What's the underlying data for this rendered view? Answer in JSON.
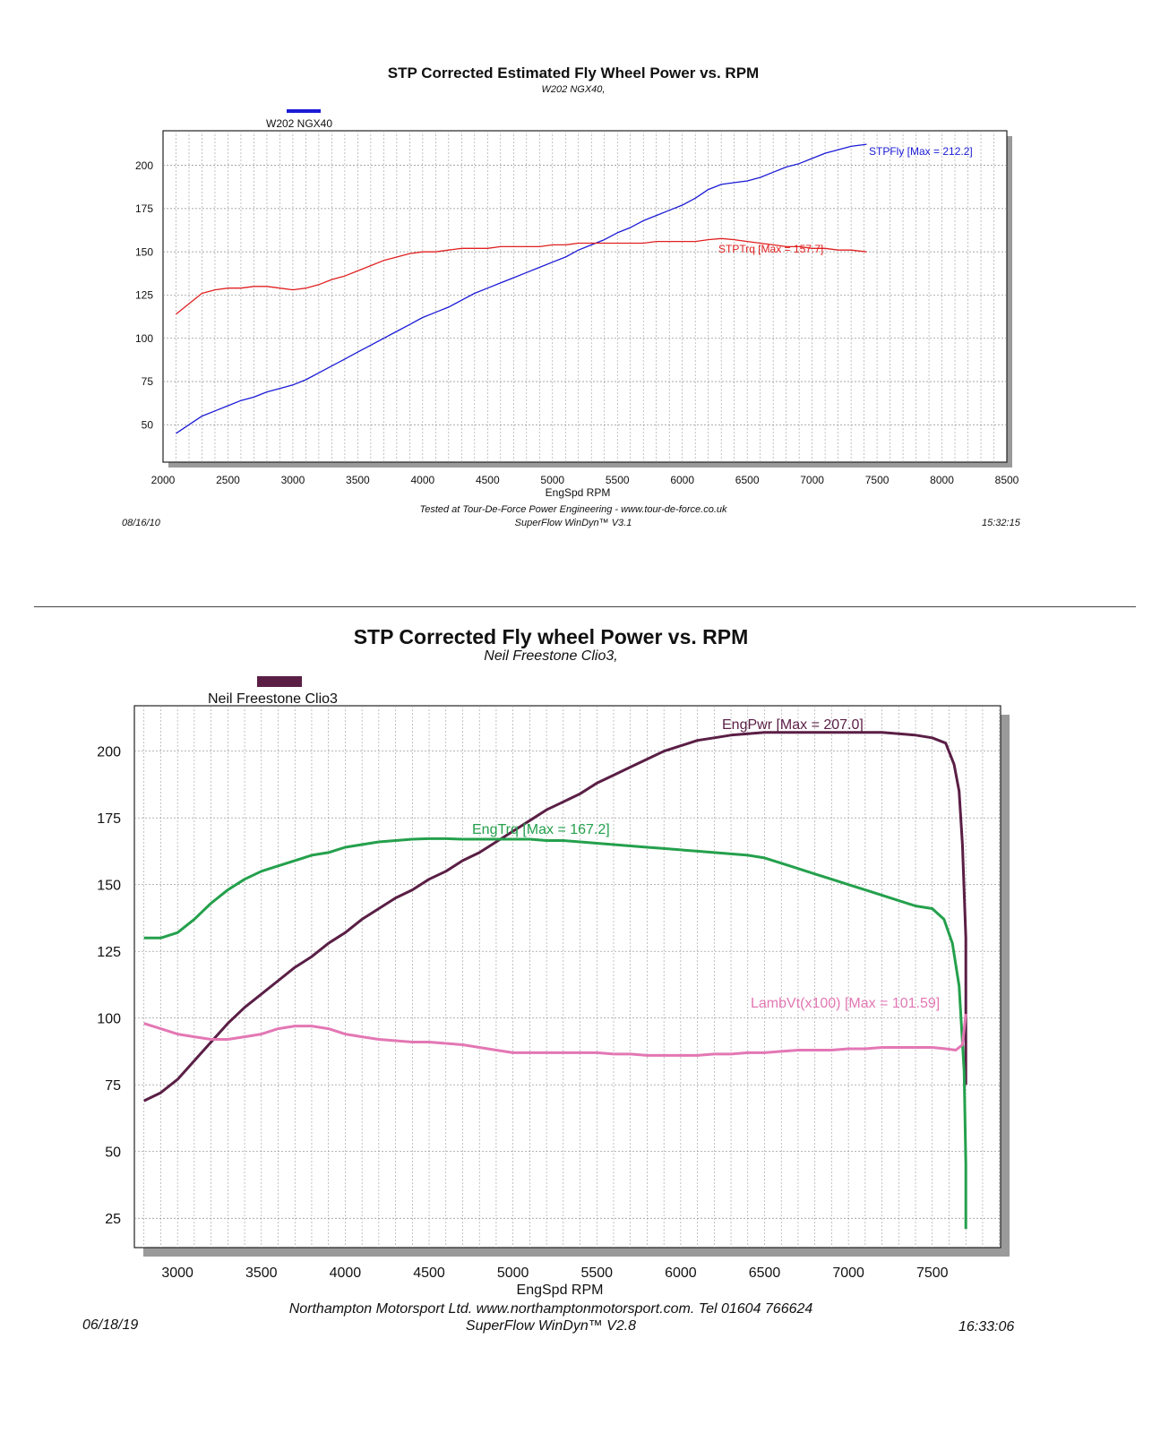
{
  "chart_data": [
    {
      "type": "line",
      "title": "STP Corrected Estimated Fly Wheel Power vs. RPM",
      "subtitle": "W202 NGX40,",
      "legend": {
        "name": "W202 NGX40",
        "color": "#1a1ad6",
        "placement": "top-left"
      },
      "xlabel": "EngSpd RPM",
      "ylabel": "",
      "xlim": [
        2000,
        8500
      ],
      "ylim": [
        32,
        220
      ],
      "xticks": [
        2000,
        2500,
        3000,
        3500,
        4000,
        4500,
        5000,
        5500,
        6000,
        6500,
        7000,
        7500,
        8000,
        8500
      ],
      "yticks": [
        50,
        75,
        100,
        125,
        150,
        175,
        200
      ],
      "grid": true,
      "series": [
        {
          "name": "STPFly",
          "label": "STPFly [Max = 212.2]",
          "color": "#1a1ad6",
          "x": [
            2100,
            2200,
            2300,
            2400,
            2500,
            2600,
            2700,
            2800,
            2900,
            3000,
            3100,
            3200,
            3300,
            3400,
            3500,
            3600,
            3700,
            3800,
            3900,
            4000,
            4100,
            4200,
            4300,
            4400,
            4500,
            4600,
            4700,
            4800,
            4900,
            5000,
            5100,
            5200,
            5300,
            5400,
            5500,
            5600,
            5700,
            5800,
            5900,
            6000,
            6100,
            6200,
            6300,
            6400,
            6500,
            6600,
            6700,
            6800,
            6900,
            7000,
            7100,
            7200,
            7300,
            7420
          ],
          "y": [
            45,
            50,
            55,
            58,
            61,
            64,
            66,
            69,
            71,
            73,
            76,
            80,
            84,
            88,
            92,
            96,
            100,
            104,
            108,
            112,
            115,
            118,
            122,
            126,
            129,
            132,
            135,
            138,
            141,
            144,
            147,
            151,
            154,
            157,
            161,
            164,
            168,
            171,
            174,
            177,
            181,
            186,
            189,
            190,
            191,
            193,
            196,
            199,
            201,
            204,
            207,
            209,
            211,
            212.2
          ]
        },
        {
          "name": "STPTrq",
          "label": "STPTrq [Max = 157.7]",
          "color": "#e02020",
          "x": [
            2100,
            2200,
            2300,
            2400,
            2500,
            2600,
            2700,
            2800,
            2900,
            3000,
            3100,
            3200,
            3300,
            3400,
            3500,
            3600,
            3700,
            3800,
            3900,
            4000,
            4100,
            4200,
            4300,
            4400,
            4500,
            4600,
            4700,
            4800,
            4900,
            5000,
            5100,
            5200,
            5300,
            5400,
            5500,
            5600,
            5700,
            5800,
            5900,
            6000,
            6100,
            6200,
            6300,
            6400,
            6500,
            6600,
            6700,
            6800,
            6900,
            7000,
            7100,
            7200,
            7300,
            7420
          ],
          "y": [
            114,
            120,
            126,
            128,
            129,
            129,
            130,
            130,
            129,
            128,
            129,
            131,
            134,
            136,
            139,
            142,
            145,
            147,
            149,
            150,
            150,
            151,
            152,
            152,
            152,
            153,
            153,
            153,
            153,
            154,
            154,
            155,
            155,
            155,
            155,
            155,
            155,
            156,
            156,
            156,
            156,
            157,
            157.7,
            157,
            156,
            155,
            154,
            153,
            153,
            152,
            152,
            151,
            151,
            150
          ]
        }
      ]
    },
    {
      "type": "line",
      "title": "STP Corrected Fly wheel Power vs. RPM",
      "subtitle": "Neil Freestone Clio3,",
      "legend": {
        "name": "Neil Freestone Clio3",
        "color": "#5a1e45",
        "placement": "top-left"
      },
      "xlabel": "EngSpd  RPM",
      "ylabel": "",
      "xlim": [
        2700,
        7950
      ],
      "ylim": [
        14,
        217
      ],
      "xticks": [
        3000,
        3500,
        4000,
        4500,
        5000,
        5500,
        6000,
        6500,
        7000,
        7500
      ],
      "yticks": [
        25,
        50,
        75,
        100,
        125,
        150,
        175,
        200
      ],
      "grid": true,
      "series": [
        {
          "name": "EngPwr",
          "label": "EngPwr [Max = 207.0]",
          "color": "#5a1e45",
          "x": [
            2800,
            2900,
            3000,
            3100,
            3200,
            3300,
            3400,
            3500,
            3600,
            3700,
            3800,
            3900,
            4000,
            4100,
            4200,
            4300,
            4400,
            4500,
            4600,
            4700,
            4800,
            4900,
            5000,
            5100,
            5200,
            5300,
            5400,
            5500,
            5600,
            5700,
            5800,
            5900,
            6000,
            6100,
            6200,
            6300,
            6400,
            6500,
            6600,
            6700,
            6800,
            6900,
            7000,
            7100,
            7200,
            7300,
            7400,
            7500,
            7580,
            7630,
            7660,
            7680,
            7700,
            7700
          ],
          "y": [
            69,
            72,
            77,
            84,
            91,
            98,
            104,
            109,
            114,
            119,
            123,
            128,
            132,
            137,
            141,
            145,
            148,
            152,
            155,
            159,
            162,
            166,
            170,
            174,
            178,
            181,
            184,
            188,
            191,
            194,
            197,
            200,
            202,
            204,
            205,
            206,
            206.5,
            207,
            207,
            207,
            207,
            207,
            207,
            207,
            207,
            206.5,
            206,
            205,
            203,
            195,
            185,
            165,
            130,
            75
          ]
        },
        {
          "name": "EngTrq",
          "label": "EngTrq [Max = 167.2]",
          "color": "#24a04c",
          "x": [
            2800,
            2900,
            3000,
            3100,
            3200,
            3300,
            3400,
            3500,
            3600,
            3700,
            3800,
            3900,
            4000,
            4100,
            4200,
            4300,
            4400,
            4500,
            4600,
            4700,
            4800,
            4900,
            5000,
            5100,
            5200,
            5300,
            5400,
            5500,
            5600,
            5700,
            5800,
            5900,
            6000,
            6100,
            6200,
            6300,
            6400,
            6500,
            6600,
            6700,
            6800,
            6900,
            7000,
            7100,
            7200,
            7300,
            7400,
            7500,
            7570,
            7620,
            7660,
            7690,
            7700,
            7700
          ],
          "y": [
            130,
            130,
            132,
            137,
            143,
            148,
            152,
            155,
            157,
            159,
            161,
            162,
            164,
            165,
            166,
            166.5,
            167,
            167.2,
            167.2,
            167,
            167,
            167,
            167,
            167,
            166.5,
            166.5,
            166,
            165.5,
            165,
            164.5,
            164,
            163.5,
            163,
            162.5,
            162,
            161.5,
            161,
            160,
            158,
            156,
            154,
            152,
            150,
            148,
            146,
            144,
            142,
            141,
            137,
            128,
            112,
            80,
            45,
            21
          ]
        },
        {
          "name": "LambVt(x100)",
          "label": "LambVt(x100) [Max = 101.59]",
          "color": "#e377b4",
          "x": [
            2800,
            2900,
            3000,
            3100,
            3200,
            3300,
            3400,
            3500,
            3600,
            3700,
            3800,
            3900,
            4000,
            4100,
            4200,
            4300,
            4400,
            4500,
            4600,
            4700,
            4800,
            4900,
            5000,
            5100,
            5200,
            5300,
            5400,
            5500,
            5600,
            5700,
            5800,
            5900,
            6000,
            6100,
            6200,
            6300,
            6400,
            6500,
            6600,
            6700,
            6800,
            6900,
            7000,
            7100,
            7200,
            7300,
            7400,
            7500,
            7580,
            7640,
            7680,
            7700
          ],
          "y": [
            98,
            96,
            94,
            93,
            92,
            92,
            93,
            94,
            96,
            97,
            97,
            96,
            94,
            93,
            92,
            91.5,
            91,
            91,
            90.5,
            90,
            89,
            88,
            87,
            87,
            87,
            87,
            87,
            87,
            86.5,
            86.5,
            86,
            86,
            86,
            86,
            86.5,
            86.5,
            87,
            87,
            87.5,
            88,
            88,
            88,
            88.5,
            88.5,
            89,
            89,
            89,
            89,
            88.5,
            88,
            90,
            101.59
          ]
        }
      ]
    }
  ],
  "panel1": {
    "title": "STP Corrected Estimated Fly Wheel Power vs. RPM",
    "subtitle": "W202 NGX40,",
    "footer_line1": "Tested at Tour-De-Force Power Engineering - www.tour-de-force.co.uk",
    "footer_line2": "SuperFlow WinDyn™ V3.1",
    "date": "08/16/10",
    "time": "15:32:15"
  },
  "panel2": {
    "title": "STP Corrected Fly wheel Power vs. RPM",
    "subtitle": "Neil Freestone Clio3,",
    "footer_line1": "Northampton Motorsport Ltd.  www.northamptonmotorsport.com.  Tel 01604 766624",
    "footer_line2": "SuperFlow WinDyn™ V2.8",
    "date": "06/18/19",
    "time": "16:33:06"
  }
}
